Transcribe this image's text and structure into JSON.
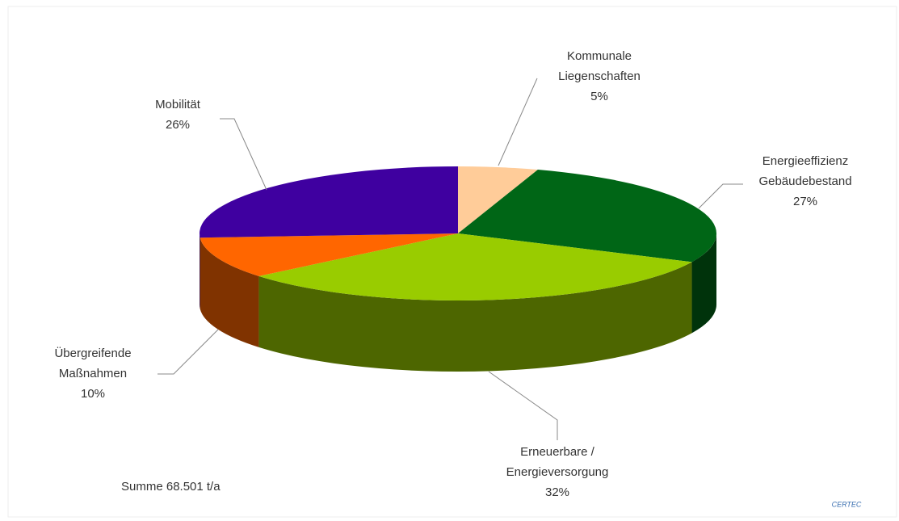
{
  "chart_data": {
    "type": "pie3d",
    "categories": [
      [
        "Kommunale",
        "Liegenschaften"
      ],
      [
        "Energieeffizienz",
        "Gebäudebestand"
      ],
      [
        "Erneuerbare /",
        "Energieversorgung"
      ],
      [
        "Übergreifende",
        "Maßnahmen"
      ],
      [
        "Mobilität"
      ]
    ],
    "values": [
      5,
      27,
      32,
      10,
      26
    ],
    "value_labels": [
      "5%",
      "27%",
      "32%",
      "10%",
      "26%"
    ],
    "colors": [
      "#ffcc99",
      "#006616",
      "#99cc00",
      "#ff6600",
      "#3f00a0"
    ],
    "annotation": "Summe 68.501 t/a",
    "logo": "CERTEC"
  }
}
